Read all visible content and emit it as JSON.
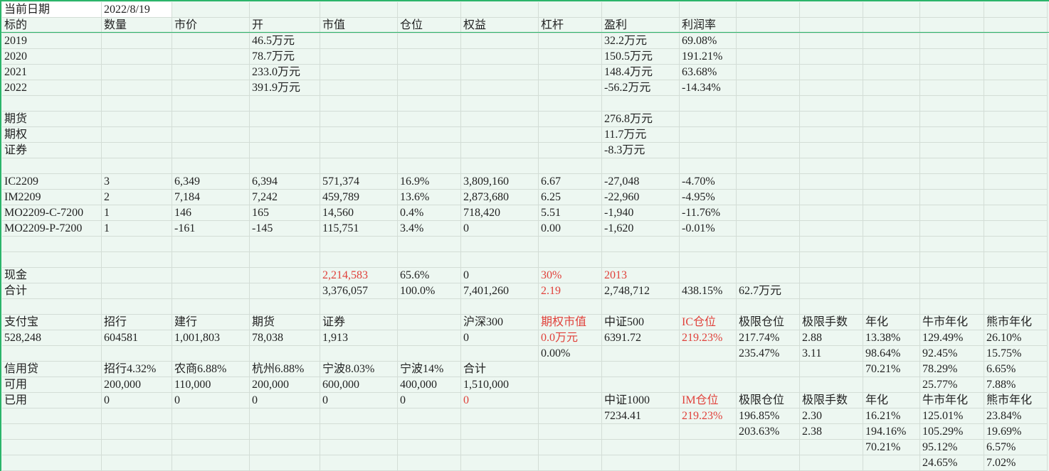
{
  "sheet": {
    "rows": [
      [
        "当前日期",
        "2022/8/19"
      ],
      [
        "标的",
        "数量",
        "市价",
        "开",
        "市值",
        "仓位",
        "权益",
        "杠杆",
        "盈利",
        "利润率"
      ],
      [
        "2019",
        null,
        null,
        "46.5万元",
        null,
        null,
        null,
        null,
        "32.2万元",
        "69.08%"
      ],
      [
        "2020",
        null,
        null,
        "78.7万元",
        null,
        null,
        null,
        null,
        "150.5万元",
        "191.21%"
      ],
      [
        "2021",
        null,
        null,
        "233.0万元",
        null,
        null,
        null,
        null,
        "148.4万元",
        "63.68%"
      ],
      [
        "2022",
        null,
        null,
        "391.9万元",
        null,
        null,
        null,
        null,
        "-56.2万元",
        "-14.34%"
      ],
      [],
      [
        "期货",
        null,
        null,
        null,
        null,
        null,
        null,
        null,
        "276.8万元"
      ],
      [
        "期权",
        null,
        null,
        null,
        null,
        null,
        null,
        null,
        "11.7万元"
      ],
      [
        "证券",
        null,
        null,
        null,
        null,
        null,
        null,
        null,
        "-8.3万元"
      ],
      [],
      [
        "IC2209",
        "3",
        "6,349",
        "6,394",
        "571,374",
        "16.9%",
        "3,809,160",
        "6.67",
        "-27,048",
        "-4.70%"
      ],
      [
        "IM2209",
        "2",
        "7,184",
        "7,242",
        "459,789",
        "13.6%",
        "2,873,680",
        "6.25",
        "-22,960",
        "-4.95%"
      ],
      [
        "MO2209-C-7200",
        "1",
        "146",
        "165",
        "14,560",
        "0.4%",
        "718,420",
        "5.51",
        "-1,940",
        "-11.76%"
      ],
      [
        "MO2209-P-7200",
        "1",
        "-161",
        "-145",
        "115,751",
        "3.4%",
        "0",
        "0.00",
        "-1,620",
        "-0.01%"
      ],
      [],
      [],
      [
        "现金",
        null,
        null,
        null,
        {
          "text": "2,214,583",
          "color": "#e0403a"
        },
        "65.6%",
        "0",
        {
          "text": "30%",
          "color": "#e0403a"
        },
        {
          "text": "2013",
          "color": "#e0403a"
        }
      ],
      [
        "合计",
        null,
        null,
        null,
        "3,376,057",
        "100.0%",
        "7,401,260",
        {
          "text": "2.19",
          "color": "#e0403a"
        },
        "2,748,712",
        "438.15%",
        "62.7万元"
      ],
      [],
      [
        "支付宝",
        "招行",
        "建行",
        "期货",
        "证券",
        null,
        "沪深300",
        {
          "text": "期权市值",
          "color": "#e0403a"
        },
        "中证500",
        {
          "text": "IC仓位",
          "color": "#e0403a"
        },
        "极限仓位",
        "极限手数",
        "年化",
        "牛市年化",
        "熊市年化"
      ],
      [
        "528,248",
        "604581",
        "1,001,803",
        "78,038",
        "1,913",
        null,
        "0",
        {
          "text": "0.0万元",
          "color": "#e0403a"
        },
        "6391.72",
        {
          "text": "219.23%",
          "color": "#e0403a"
        },
        "217.74%",
        "2.88",
        "13.38%",
        "129.49%",
        "26.10%"
      ],
      [
        null,
        null,
        null,
        null,
        null,
        null,
        null,
        "0.00%",
        null,
        null,
        "235.47%",
        "3.11",
        "98.64%",
        "92.45%",
        "15.75%"
      ],
      [
        "信用贷",
        "招行4.32%",
        "农商6.88%",
        "杭州6.88%",
        "宁波8.03%",
        "宁波14%",
        "合计",
        null,
        null,
        null,
        null,
        null,
        "70.21%",
        "78.29%",
        "6.65%"
      ],
      [
        "可用",
        "200,000",
        "110,000",
        "200,000",
        "600,000",
        "400,000",
        "1,510,000",
        null,
        null,
        null,
        null,
        null,
        null,
        "25.77%",
        "7.88%"
      ],
      [
        "已用",
        "0",
        "0",
        "0",
        "0",
        "0",
        {
          "text": "0",
          "color": "#e0403a"
        },
        null,
        "中证1000",
        {
          "text": "IM仓位",
          "color": "#e0403a"
        },
        "极限仓位",
        "极限手数",
        "年化",
        "牛市年化",
        "熊市年化"
      ],
      [
        null,
        null,
        null,
        null,
        null,
        null,
        null,
        null,
        "7234.41",
        {
          "text": "219.23%",
          "color": "#e0403a"
        },
        "196.85%",
        "2.30",
        "16.21%",
        "125.01%",
        "23.84%"
      ],
      [
        null,
        null,
        null,
        null,
        null,
        null,
        null,
        null,
        null,
        null,
        "203.63%",
        "2.38",
        "194.16%",
        "105.29%",
        "19.69%"
      ],
      [
        null,
        null,
        null,
        null,
        null,
        null,
        null,
        null,
        null,
        null,
        null,
        null,
        "70.21%",
        "95.12%",
        "6.57%"
      ],
      [
        null,
        null,
        null,
        null,
        null,
        null,
        null,
        null,
        null,
        null,
        null,
        null,
        null,
        "24.65%",
        "7.02%"
      ]
    ]
  }
}
